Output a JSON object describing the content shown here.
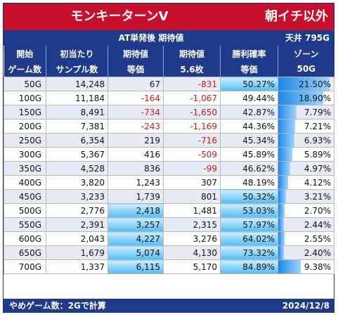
{
  "title": "モンキーターンV",
  "subtitle_right": "朝イチ以外",
  "section_label": "AT単発後 期待値",
  "ceiling_label": "天井 795G",
  "headers": [
    [
      "開始",
      "ゲーム数"
    ],
    [
      "初当たり",
      "サンプル数"
    ],
    [
      "期待値",
      "等価"
    ],
    [
      "期待値",
      "5.6枚"
    ],
    [
      "勝利確率",
      "等価"
    ],
    [
      "ゾーン",
      "50G"
    ]
  ],
  "rows": [
    {
      "game": "50G",
      "samples": "14,248",
      "ev_eq": "67",
      "ev_56": "-831",
      "win": "50.27%",
      "zone": "21.50%"
    },
    {
      "game": "100G",
      "samples": "11,184",
      "ev_eq": "-164",
      "ev_56": "-1,067",
      "win": "49.44%",
      "zone": "18.90%"
    },
    {
      "game": "150G",
      "samples": "8,491",
      "ev_eq": "-734",
      "ev_56": "-1,650",
      "win": "42.87%",
      "zone": "7.79%"
    },
    {
      "game": "200G",
      "samples": "7,381",
      "ev_eq": "-243",
      "ev_56": "-1,169",
      "win": "44.36%",
      "zone": "7.21%"
    },
    {
      "game": "250G",
      "samples": "6,354",
      "ev_eq": "219",
      "ev_56": "-716",
      "win": "45.34%",
      "zone": "6.93%"
    },
    {
      "game": "300G",
      "samples": "5,367",
      "ev_eq": "416",
      "ev_56": "-509",
      "win": "45.89%",
      "zone": "5.89%"
    },
    {
      "game": "350G",
      "samples": "4,528",
      "ev_eq": "836",
      "ev_56": "-99",
      "win": "46.62%",
      "zone": "4.97%"
    },
    {
      "game": "400G",
      "samples": "3,820",
      "ev_eq": "1,243",
      "ev_56": "307",
      "win": "48.19%",
      "zone": "4.12%"
    },
    {
      "game": "450G",
      "samples": "3,233",
      "ev_eq": "1,739",
      "ev_56": "801",
      "win": "50.32%",
      "zone": "3.21%"
    },
    {
      "game": "500G",
      "samples": "2,776",
      "ev_eq": "2,418",
      "ev_56": "1,481",
      "win": "53.03%",
      "zone": "2.70%"
    },
    {
      "game": "550G",
      "samples": "2,391",
      "ev_eq": "3,257",
      "ev_56": "2,315",
      "win": "57.97%",
      "zone": "2.44%"
    },
    {
      "game": "600G",
      "samples": "2,043",
      "ev_eq": "4,227",
      "ev_56": "3,276",
      "win": "64.02%",
      "zone": "2.55%"
    },
    {
      "game": "650G",
      "samples": "1,679",
      "ev_eq": "5,074",
      "ev_56": "4,130",
      "win": "73.32%",
      "zone": "2.40%"
    },
    {
      "game": "700G",
      "samples": "1,337",
      "ev_eq": "6,115",
      "ev_56": "5,170",
      "win": "84.89%",
      "zone": "9.38%"
    }
  ],
  "footer_left": "やめゲーム数：2Gで計算",
  "footer_right": "2024/12/8",
  "colors": {
    "title_red": "#c8102e",
    "header_blue": "#1f3a8a",
    "negative_red": "#d01818",
    "highlight_blue": "#53bdf2"
  }
}
